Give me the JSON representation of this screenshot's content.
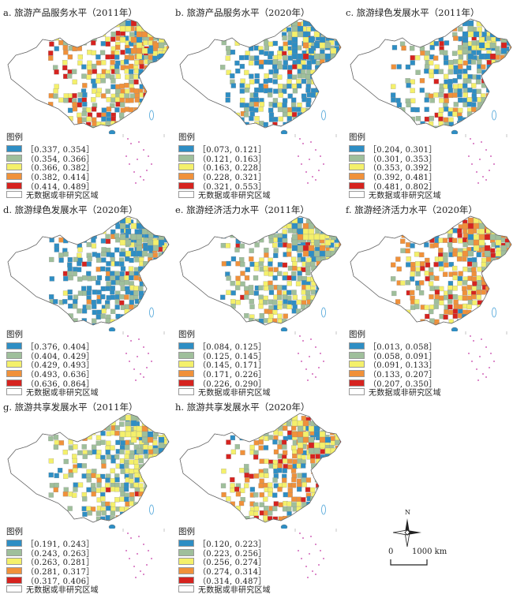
{
  "colors": {
    "c1": "#2e8ec4",
    "c2": "#9fbf9b",
    "c3": "#f4f06b",
    "c4": "#f0913a",
    "c5": "#d6231f",
    "nodata": "#ffffff"
  },
  "legend_heading": "图例",
  "nodata_label": "无数据或非研究区域",
  "scale": {
    "zero": "0",
    "distance": "1000 km"
  },
  "compass_label": "N",
  "panels": [
    {
      "title": "a. 旅游产品服务水平（2011年）",
      "classes": [
        "［0.337, 0.354］",
        "（0.354, 0.366］",
        "（0.366, 0.382］",
        "（0.382, 0.414］",
        "（0.414, 0.489］"
      ],
      "mix": [
        0.16,
        0.22,
        0.3,
        0.21,
        0.11
      ]
    },
    {
      "title": "b. 旅游产品服务水平（2020年）",
      "classes": [
        "［0.073, 0.121］",
        "（0.121, 0.163］",
        "（0.163, 0.228］",
        "（0.228, 0.321］",
        "（0.321, 0.553］"
      ],
      "mix": [
        0.52,
        0.24,
        0.15,
        0.05,
        0.04
      ]
    },
    {
      "title": "c. 旅游绿色发展水平（2011年）",
      "classes": [
        "［0.204, 0.301］",
        "（0.301, 0.353］",
        "（0.353, 0.392］",
        "（0.392, 0.481］",
        "（0.481, 0.802］"
      ],
      "mix": [
        0.32,
        0.28,
        0.22,
        0.12,
        0.06
      ]
    },
    {
      "title": "d. 旅游绿色发展水平（2020年）",
      "classes": [
        "［0.376, 0.404］",
        "（0.404, 0.429］",
        "（0.429, 0.493］",
        "（0.493, 0.636］",
        "（0.636, 0.864］"
      ],
      "mix": [
        0.48,
        0.36,
        0.1,
        0.04,
        0.02
      ]
    },
    {
      "title": "e. 旅游经济活力水平（2011年）",
      "classes": [
        "［0.084, 0.125］",
        "（0.125, 0.145］",
        "（0.145, 0.171］",
        "（0.171, 0.226］",
        "（0.226, 0.290］"
      ],
      "mix": [
        0.18,
        0.36,
        0.28,
        0.14,
        0.04
      ]
    },
    {
      "title": "f. 旅游经济活力水平（2020年）",
      "classes": [
        "［0.013, 0.058］",
        "（0.058, 0.091］",
        "（0.091, 0.133］",
        "（0.133, 0.207］",
        "（0.207, 0.350］"
      ],
      "mix": [
        0.1,
        0.18,
        0.2,
        0.34,
        0.18
      ]
    },
    {
      "title": "g. 旅游共享发展水平（2011年）",
      "classes": [
        "［0.191, 0.243］",
        "（0.243, 0.263］",
        "（0.263, 0.281］",
        "（0.281, 0.317］",
        "（0.317, 0.406］"
      ],
      "mix": [
        0.22,
        0.32,
        0.34,
        0.1,
        0.02
      ]
    },
    {
      "title": "h. 旅游共享发展水平（2020年）",
      "classes": [
        "［0.120, 0.223］",
        "（0.223, 0.256］",
        "（0.256, 0.274］",
        "（0.274, 0.314］",
        "（0.314, 0.487］"
      ],
      "mix": [
        0.14,
        0.22,
        0.3,
        0.26,
        0.08
      ]
    }
  ]
}
